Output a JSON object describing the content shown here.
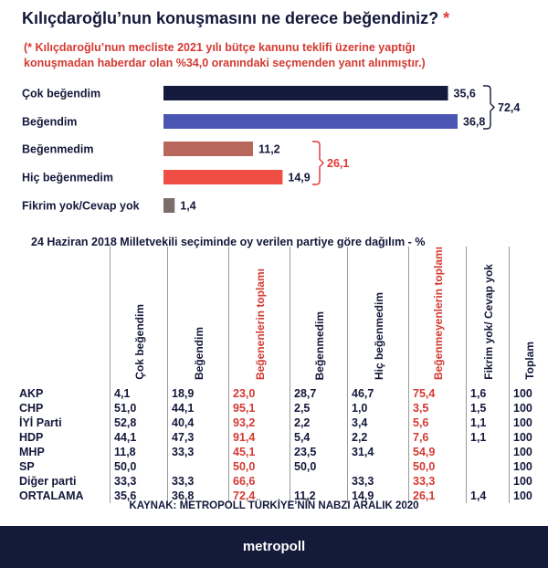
{
  "header": {
    "title": "Kılıçdaroğlu’nun konuşmasını ne derece beğendiniz?",
    "title_mark": "*",
    "note": "(* Kılıçdaroğlu’nun mecliste 2021 yılı bütçe kanunu teklifi üzerine yaptığı konuşmadan haberdar olan %34,0 oranındaki seçmenden yanıt alınmıştır.)"
  },
  "chart_data": [
    {
      "type": "bar",
      "orientation": "horizontal",
      "categories": [
        "Çok beğendim",
        "Beğendim",
        "Beğenmedim",
        "Hiç beğenmedim",
        "Fikrim yok/Cevap yok"
      ],
      "values": [
        35.6,
        36.8,
        11.2,
        14.9,
        1.4
      ],
      "value_labels": [
        "35,6",
        "36,8",
        "11,2",
        "14,9",
        "1,4"
      ],
      "colors": [
        "#141a3c",
        "#4b56b2",
        "#b8675c",
        "#f04d45",
        "#7b6e6a"
      ],
      "groups": [
        {
          "members": [
            0,
            1
          ],
          "total": "72,4",
          "color": "#141a3c"
        },
        {
          "members": [
            2,
            3
          ],
          "total": "26,1",
          "color": "#e03535"
        }
      ]
    },
    {
      "type": "table",
      "title": "24 Haziran 2018 Milletvekili seçiminde oy verilen partiye göre dağılım - %",
      "columns": [
        "Çok beğendim",
        "Beğendim",
        "Beğenenlerin toplamı",
        "Beğenmedim",
        "Hiç beğenmedim",
        "Beğenmeyenlerin toplamı",
        "Fikrim yok/ Cevap yok",
        "Toplam"
      ],
      "highlight_columns": [
        2,
        5
      ],
      "rows": [
        {
          "label": "AKP",
          "values": [
            "4,1",
            "18,9",
            "23,0",
            "28,7",
            "46,7",
            "75,4",
            "1,6",
            "100"
          ]
        },
        {
          "label": "CHP",
          "values": [
            "51,0",
            "44,1",
            "95,1",
            "2,5",
            "1,0",
            "3,5",
            "1,5",
            "100"
          ]
        },
        {
          "label": "İYİ Parti",
          "values": [
            "52,8",
            "40,4",
            "93,2",
            "2,2",
            "3,4",
            "5,6",
            "1,1",
            "100"
          ]
        },
        {
          "label": "HDP",
          "values": [
            "44,1",
            "47,3",
            "91,4",
            "5,4",
            "2,2",
            "7,6",
            "1,1",
            "100"
          ]
        },
        {
          "label": "MHP",
          "values": [
            "11,8",
            "33,3",
            "45,1",
            "23,5",
            "31,4",
            "54,9",
            "",
            "100"
          ]
        },
        {
          "label": "SP",
          "values": [
            "50,0",
            "",
            "50,0",
            "50,0",
            "",
            "50,0",
            "",
            "100"
          ]
        },
        {
          "label": "Diğer parti",
          "values": [
            "33,3",
            "33,3",
            "66,6",
            "",
            "33,3",
            "33,3",
            "",
            "100"
          ]
        },
        {
          "label": "ORTALAMA",
          "values": [
            "35,6",
            "36,8",
            "72,4",
            "11,2",
            "14,9",
            "26,1",
            "1,4",
            "100"
          ]
        }
      ]
    }
  ],
  "footer": {
    "source": "KAYNAK: METROPOLL TÜRKİYE’NİN NABZI ARALIK 2020",
    "brand": "metropoll"
  }
}
